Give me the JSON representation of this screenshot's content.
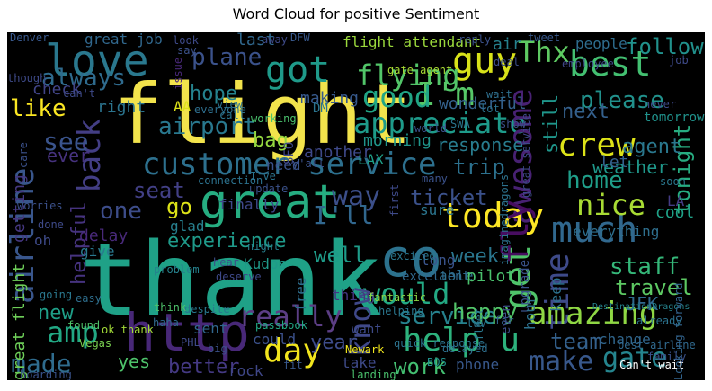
{
  "title": "Word Cloud for positive Sentiment",
  "words": [
    {
      "text": "flight"
    },
    {
      "text": "thank"
    },
    {
      "text": "great"
    },
    {
      "text": "http"
    },
    {
      "text": "co"
    },
    {
      "text": "love"
    },
    {
      "text": "customer service"
    },
    {
      "text": "guy"
    },
    {
      "text": "best"
    },
    {
      "text": "got"
    },
    {
      "text": "plane"
    },
    {
      "text": "flying"
    },
    {
      "text": "Thx"
    },
    {
      "text": "follow"
    },
    {
      "text": "I'm"
    },
    {
      "text": "good"
    },
    {
      "text": "appreciate"
    },
    {
      "text": "crew"
    },
    {
      "text": "awesome"
    },
    {
      "text": "today"
    },
    {
      "text": "much"
    },
    {
      "text": "time"
    },
    {
      "text": "airline"
    },
    {
      "text": "back"
    },
    {
      "text": "get"
    },
    {
      "text": "help u"
    },
    {
      "text": "amazing"
    },
    {
      "text": "make"
    },
    {
      "text": "gate"
    },
    {
      "text": "day"
    },
    {
      "text": "really"
    },
    {
      "text": "service"
    },
    {
      "text": "would"
    },
    {
      "text": "know"
    },
    {
      "text": "amp"
    },
    {
      "text": "made"
    },
    {
      "text": "always"
    },
    {
      "text": "like"
    },
    {
      "text": "please"
    },
    {
      "text": "hope"
    },
    {
      "text": "airport"
    },
    {
      "text": "see"
    },
    {
      "text": "home"
    },
    {
      "text": "nice"
    },
    {
      "text": "fly"
    },
    {
      "text": "staff"
    },
    {
      "text": "travel"
    },
    {
      "text": "team"
    },
    {
      "text": "happy"
    },
    {
      "text": "tonight"
    },
    {
      "text": "weather"
    },
    {
      "text": "response"
    },
    {
      "text": "trip"
    },
    {
      "text": "way"
    },
    {
      "text": "I'll"
    },
    {
      "text": "seat"
    },
    {
      "text": "one"
    },
    {
      "text": "go"
    },
    {
      "text": "experience"
    },
    {
      "text": "helpful"
    },
    {
      "text": "well"
    },
    {
      "text": "week"
    },
    {
      "text": "ticket"
    },
    {
      "text": "new"
    },
    {
      "text": "work"
    },
    {
      "text": "better"
    },
    {
      "text": "year"
    },
    {
      "text": "yes"
    },
    {
      "text": "bag"
    },
    {
      "text": "still"
    },
    {
      "text": "next"
    },
    {
      "text": "agent"
    },
    {
      "text": "making"
    },
    {
      "text": "morning"
    },
    {
      "text": "flight attendant"
    },
    {
      "text": "great job"
    },
    {
      "text": "ever"
    },
    {
      "text": "getting"
    },
    {
      "text": "check"
    },
    {
      "text": "right"
    },
    {
      "text": "last"
    },
    {
      "text": "air"
    },
    {
      "text": "people"
    },
    {
      "text": "tomorrow"
    },
    {
      "text": "let"
    },
    {
      "text": "wonderful"
    },
    {
      "text": "DM"
    },
    {
      "text": "AA"
    },
    {
      "text": "need"
    },
    {
      "text": "another"
    },
    {
      "text": "LAX"
    },
    {
      "text": "SFO"
    },
    {
      "text": "finally"
    },
    {
      "text": "glad"
    },
    {
      "text": "sure"
    },
    {
      "text": "everything"
    },
    {
      "text": "cool"
    },
    {
      "text": "LA"
    },
    {
      "text": "delay"
    },
    {
      "text": "give"
    },
    {
      "text": "Kudos"
    },
    {
      "text": "free"
    },
    {
      "text": "thing"
    },
    {
      "text": "long"
    },
    {
      "text": "excellent"
    },
    {
      "text": "able"
    },
    {
      "text": "pilot"
    },
    {
      "text": "keep"
    },
    {
      "text": "upgrade"
    },
    {
      "text": "JFK"
    },
    {
      "text": "best airline"
    },
    {
      "text": "change"
    },
    {
      "text": "hour"
    },
    {
      "text": "phone"
    },
    {
      "text": "BOS"
    },
    {
      "text": "great flight"
    },
    {
      "text": "oh"
    },
    {
      "text": "ok thank"
    },
    {
      "text": "sent"
    },
    {
      "text": "rock"
    },
    {
      "text": "could"
    },
    {
      "text": "take"
    },
    {
      "text": "want"
    },
    {
      "text": "fantastic"
    },
    {
      "text": "helping"
    },
    {
      "text": "quick response"
    },
    {
      "text": "delayed"
    },
    {
      "text": "luv"
    },
    {
      "text": "fleet"
    },
    {
      "text": "far"
    },
    {
      "text": "even"
    },
    {
      "text": "DestinationDragons"
    },
    {
      "text": "Looking forward"
    },
    {
      "text": "Can't wait"
    },
    {
      "text": "Vegas"
    },
    {
      "text": "PHL"
    },
    {
      "text": "passbook"
    },
    {
      "text": "Newark"
    },
    {
      "text": "boarding"
    },
    {
      "text": "landing"
    },
    {
      "text": "haha"
    },
    {
      "text": "despite"
    },
    {
      "text": "think"
    },
    {
      "text": "easy"
    },
    {
      "text": "found"
    },
    {
      "text": "going"
    },
    {
      "text": "problem"
    },
    {
      "text": "deserve"
    },
    {
      "text": "hear"
    },
    {
      "text": "night"
    },
    {
      "text": "I've"
    },
    {
      "text": "update"
    },
    {
      "text": "gate agent"
    },
    {
      "text": "connection"
    },
    {
      "text": "worries"
    },
    {
      "text": "done"
    },
    {
      "text": "everyone"
    },
    {
      "text": "call"
    },
    {
      "text": "working"
    },
    {
      "text": "view"
    },
    {
      "text": "y'all"
    },
    {
      "text": "DFW"
    },
    {
      "text": "away"
    },
    {
      "text": "Denver"
    },
    {
      "text": "say"
    },
    {
      "text": "issue"
    },
    {
      "text": "though"
    },
    {
      "text": "tweet"
    },
    {
      "text": "reply"
    },
    {
      "text": "deal"
    },
    {
      "text": "employee"
    },
    {
      "text": "job"
    },
    {
      "text": "wait"
    },
    {
      "text": "lot"
    },
    {
      "text": "world"
    },
    {
      "text": "SWA"
    },
    {
      "text": "never"
    },
    {
      "text": "show"
    },
    {
      "text": "great service"
    },
    {
      "text": "soon"
    },
    {
      "text": "imaginedragons"
    },
    {
      "text": "many"
    },
    {
      "text": "first"
    },
    {
      "text": "excited"
    },
    {
      "text": "care"
    },
    {
      "text": "can't"
    },
    {
      "text": "big"
    },
    {
      "text": "fit"
    },
    {
      "text": "already"
    },
    {
      "text": "family"
    },
    {
      "text": "look"
    }
  ]
}
